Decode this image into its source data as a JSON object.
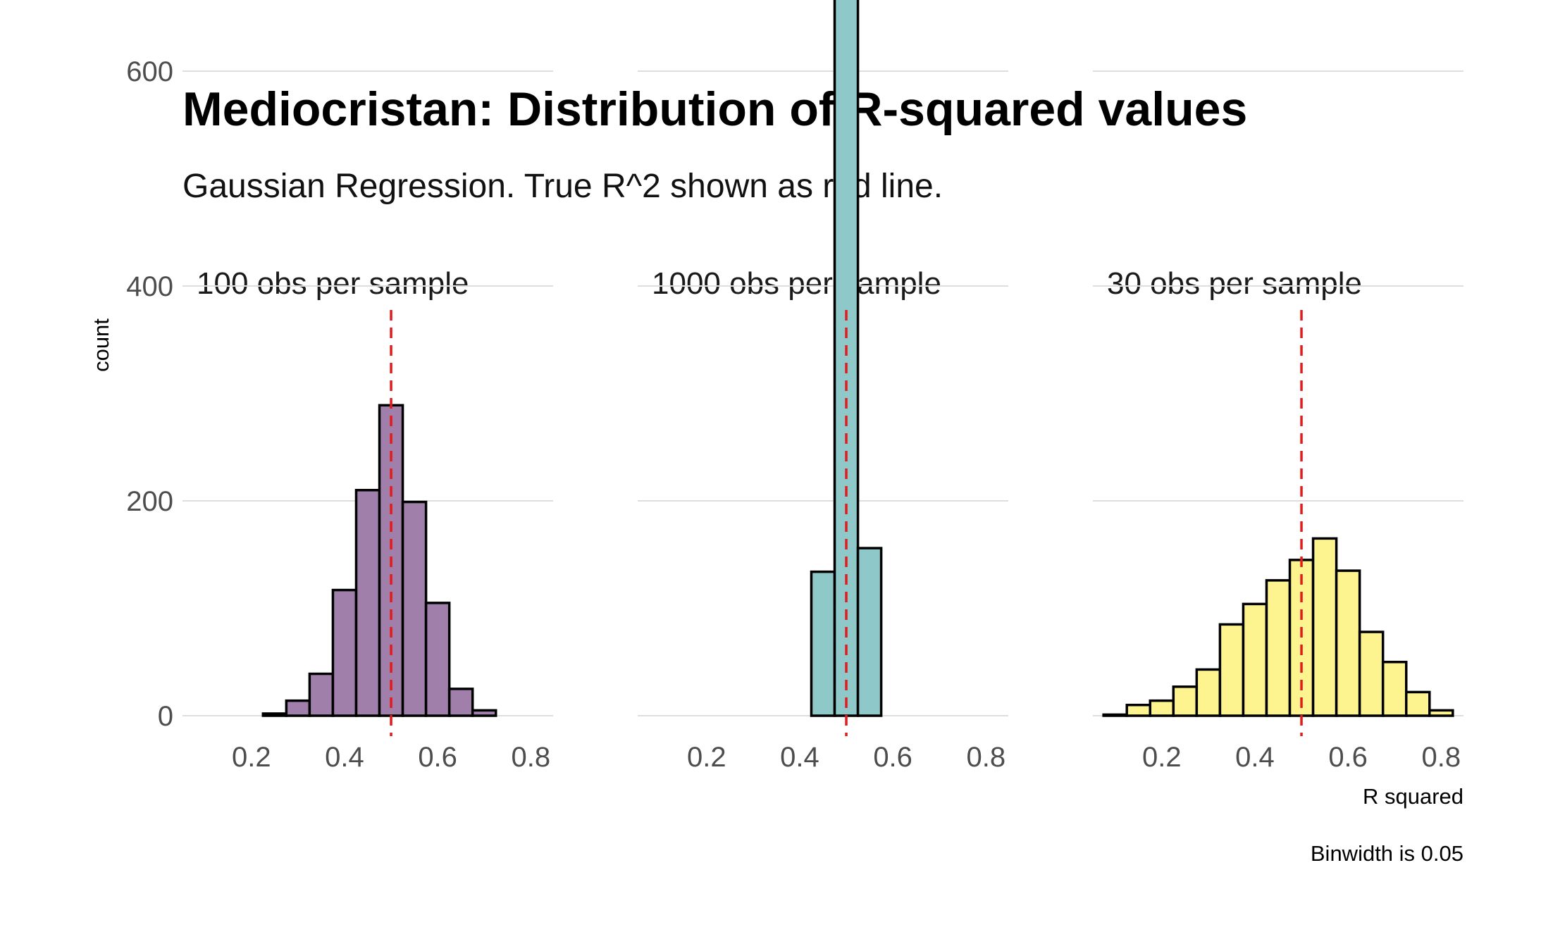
{
  "title": "Mediocristan: Distribution of R-squared values",
  "subtitle": "Gaussian Regression. True R^2 shown as red line.",
  "caption": "Binwidth is 0.05",
  "chart_data": {
    "type": "bar",
    "title": "Mediocristan: Distribution of R-squared values",
    "subtitle": "Gaussian Regression. True R^2 shown as red line.",
    "xlabel": "R squared",
    "ylabel": "count",
    "xlim": [
      0.06,
      0.84
    ],
    "ylim": [
      0,
      720
    ],
    "x_ticks": [
      0.2,
      0.4,
      0.6,
      0.8
    ],
    "x_tick_labels": [
      "0.2",
      "0.4",
      "0.6",
      "0.8"
    ],
    "y_ticks": [
      0,
      200,
      400,
      600
    ],
    "y_tick_labels": [
      "0",
      "200",
      "400",
      "600"
    ],
    "binwidth": 0.05,
    "bin_centers": [
      0.1,
      0.15,
      0.2,
      0.25,
      0.3,
      0.35,
      0.4,
      0.45,
      0.5,
      0.55,
      0.6,
      0.65,
      0.7,
      0.75,
      0.8
    ],
    "true_value": 0.5,
    "grid": true,
    "legend": "none",
    "panels": [
      {
        "name": "100 obs per sample",
        "color": "#a07faa",
        "counts": [
          0,
          0,
          0,
          2,
          14,
          39,
          117,
          210,
          289,
          199,
          105,
          25,
          5,
          0,
          0
        ]
      },
      {
        "name": "1000 obs per sample",
        "color": "#8fc8c8",
        "counts": [
          0,
          0,
          0,
          0,
          0,
          0,
          0,
          134,
          711,
          156,
          0,
          0,
          0,
          0,
          0
        ]
      },
      {
        "name": "30 obs per sample",
        "color": "#fdf48f",
        "counts": [
          1,
          10,
          14,
          27,
          43,
          85,
          104,
          126,
          145,
          165,
          135,
          78,
          50,
          22,
          5
        ]
      }
    ]
  }
}
